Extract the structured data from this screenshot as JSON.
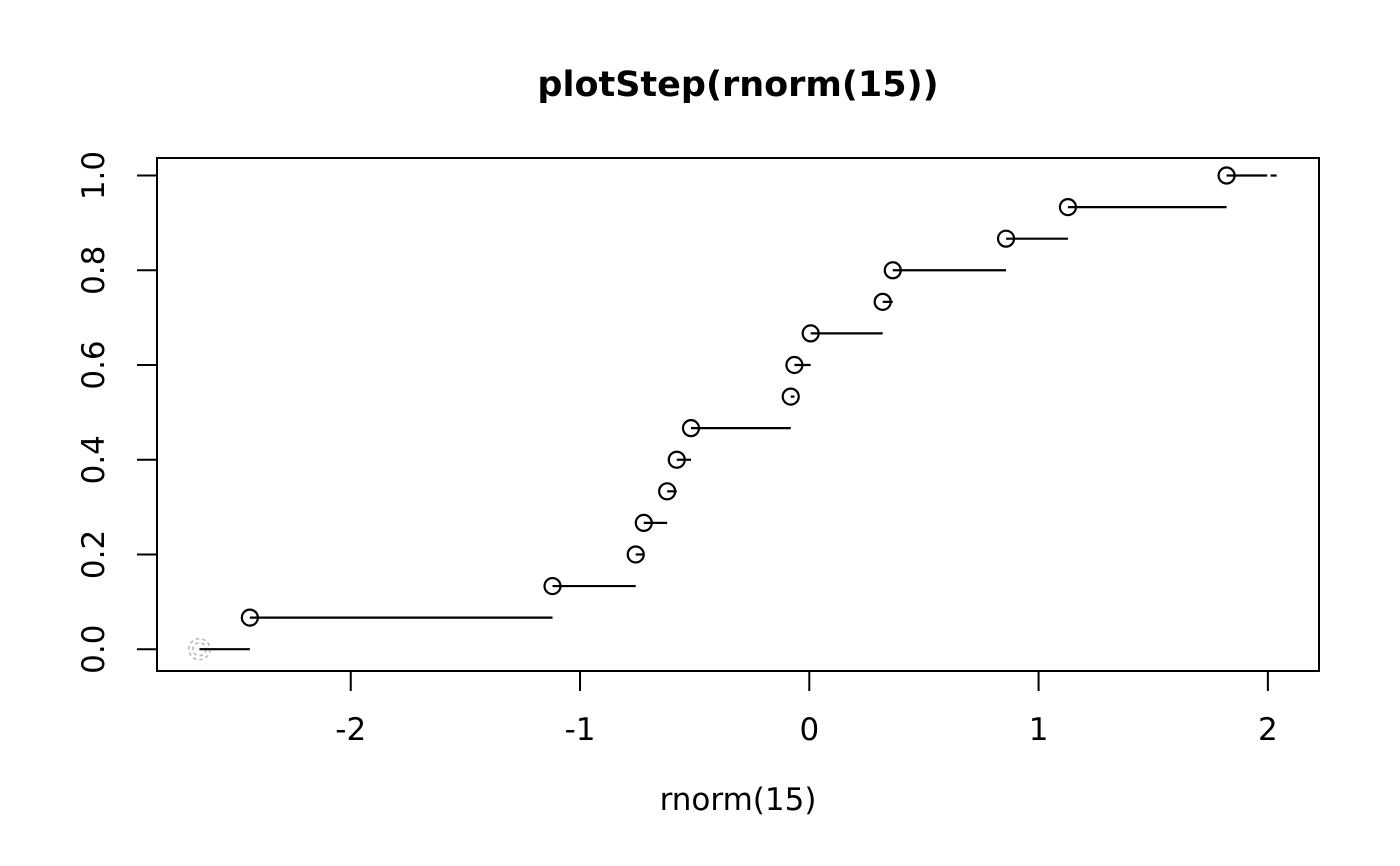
{
  "title": "plotStep(rnorm(15))",
  "chart_data": {
    "type": "step",
    "title": "plotStep(rnorm(15))",
    "xlabel": "rnorm(15)",
    "ylabel": "",
    "grid": false,
    "legend": null,
    "x_ticks": [
      -2,
      -1,
      0,
      1,
      2
    ],
    "x_tick_labels": [
      "-2",
      "-1",
      "0",
      "1",
      "2"
    ],
    "y_ticks": [
      0,
      0.2,
      0.4,
      0.6,
      0.8,
      1.0
    ],
    "y_tick_labels": [
      "0.0",
      "0.2",
      "0.4",
      "0.6",
      "0.8",
      "1.0"
    ],
    "x_range": [
      -2.845,
      2.223
    ],
    "y_range": [
      -0.046,
      1.037
    ],
    "n": 15,
    "points": [
      {
        "x": -2.44,
        "y": 0.0667
      },
      {
        "x": -1.12,
        "y": 0.1333
      },
      {
        "x": -0.757,
        "y": 0.2
      },
      {
        "x": -0.722,
        "y": 0.2667
      },
      {
        "x": -0.62,
        "y": 0.3333
      },
      {
        "x": -0.578,
        "y": 0.4
      },
      {
        "x": -0.516,
        "y": 0.4667
      },
      {
        "x": -0.081,
        "y": 0.5333
      },
      {
        "x": -0.065,
        "y": 0.6
      },
      {
        "x": 0.006,
        "y": 0.6667
      },
      {
        "x": 0.32,
        "y": 0.7333
      },
      {
        "x": 0.364,
        "y": 0.8
      },
      {
        "x": 0.858,
        "y": 0.8667
      },
      {
        "x": 1.128,
        "y": 0.9333
      },
      {
        "x": 1.82,
        "y": 1.0
      }
    ],
    "start_point": {
      "x": -2.66,
      "y": 0
    },
    "final_segment": {
      "y": 1.0,
      "solid_to": 1.997,
      "dash_from": 2.012,
      "dash_to": 2.038
    },
    "colors": {
      "line": "#000000",
      "point": "#000000",
      "start_point": "#b8b8b8",
      "background": "#ffffff"
    }
  }
}
